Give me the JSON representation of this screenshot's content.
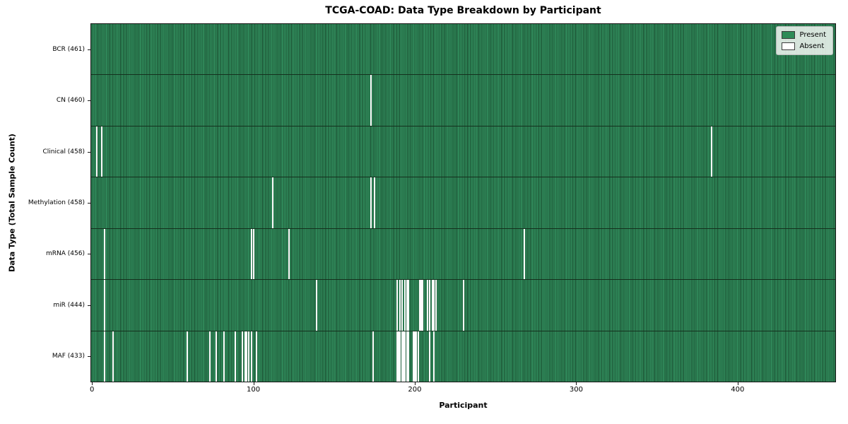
{
  "legend": {
    "position": "upper right",
    "items": [
      {
        "label": "Present",
        "color": "#2e8b57"
      },
      {
        "label": "Absent",
        "color": "#ffffff"
      }
    ]
  },
  "chart_data": {
    "type": "heatmap",
    "title": "TCGA-COAD: Data Type Breakdown by Participant",
    "xlabel": "Participant",
    "ylabel": "Data Type (Total Sample Count)",
    "x_ticks": [
      0,
      100,
      200,
      300,
      400
    ],
    "x_range": [
      -0.5,
      460.5
    ],
    "n_participants": 461,
    "grid": false,
    "legend_entries": [
      "Present",
      "Absent"
    ],
    "legend_position": "upper right",
    "present_color": "#2e8b57",
    "bar_edge_color": "#1b4f31",
    "absent_color": "#ffffff",
    "rows": [
      {
        "label": "BCR (461)",
        "name": "BCR",
        "present_count": 461,
        "absent_participants": []
      },
      {
        "label": "CN (460)",
        "name": "CN",
        "present_count": 460,
        "absent_participants": [
          173
        ]
      },
      {
        "label": "Clinical (458)",
        "name": "Clinical",
        "present_count": 458,
        "absent_participants": [
          3,
          6,
          384
        ]
      },
      {
        "label": "Methylation (458)",
        "name": "Methylation",
        "present_count": 458,
        "absent_participants": [
          112,
          173,
          175
        ]
      },
      {
        "label": "mRNA (456)",
        "name": "mRNA",
        "present_count": 456,
        "absent_participants": [
          8,
          99,
          100,
          122,
          268
        ]
      },
      {
        "label": "miR (444)",
        "name": "miR",
        "present_count": 444,
        "absent_participants": [
          8,
          139,
          189,
          191,
          192,
          194,
          195,
          196,
          203,
          204,
          205,
          208,
          209,
          211,
          212,
          213,
          230
        ]
      },
      {
        "label": "MAF (433)",
        "name": "MAF",
        "present_count": 433,
        "absent_participants": [
          8,
          13,
          59,
          73,
          77,
          82,
          89,
          93,
          95,
          96,
          97,
          99,
          102,
          174,
          189,
          190,
          191,
          192,
          193,
          194,
          195,
          196,
          199,
          200,
          201,
          202,
          209,
          212
        ]
      }
    ]
  }
}
